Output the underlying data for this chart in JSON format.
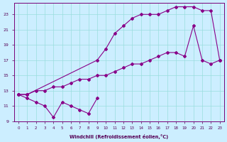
{
  "background_color": "#cceeff",
  "line_color": "#880088",
  "xlabel": "Windchill (Refroidissement éolien,°C)",
  "xlim": [
    -0.5,
    23.5
  ],
  "ylim": [
    9,
    24.5
  ],
  "xticks": [
    0,
    1,
    2,
    3,
    4,
    5,
    6,
    7,
    8,
    9,
    10,
    11,
    12,
    13,
    14,
    15,
    16,
    17,
    18,
    19,
    20,
    21,
    22,
    23
  ],
  "yticks": [
    9,
    11,
    13,
    15,
    17,
    19,
    21,
    23
  ],
  "grid_color": "#99dddd",
  "line1_x": [
    0,
    1,
    9,
    10,
    11,
    12,
    13,
    14,
    15,
    16,
    17,
    18,
    19,
    20,
    21,
    22,
    23
  ],
  "line1_y": [
    12.5,
    12.5,
    17.0,
    18.5,
    20.5,
    21.5,
    22.5,
    23.0,
    23.0,
    23.0,
    23.5,
    24.0,
    24.0,
    24.0,
    23.5,
    23.5,
    17.0
  ],
  "line2_x": [
    0,
    1,
    2,
    3,
    4,
    5,
    6,
    7,
    8,
    9,
    10,
    11,
    12,
    13,
    14,
    15,
    16,
    17,
    18,
    19,
    20,
    21,
    22,
    23
  ],
  "line2_y": [
    12.5,
    12.5,
    13.0,
    13.0,
    13.5,
    13.5,
    14.0,
    14.5,
    14.5,
    15.0,
    15.0,
    15.5,
    16.0,
    16.5,
    16.5,
    17.0,
    17.5,
    18.0,
    18.0,
    17.5,
    21.5,
    17.0,
    16.5,
    17.0
  ],
  "line3_x": [
    0,
    1,
    2,
    3,
    4,
    5,
    6,
    7,
    8,
    9
  ],
  "line3_y": [
    12.5,
    12.0,
    11.5,
    11.0,
    9.5,
    11.5,
    11.0,
    10.5,
    10.0,
    12.0
  ]
}
